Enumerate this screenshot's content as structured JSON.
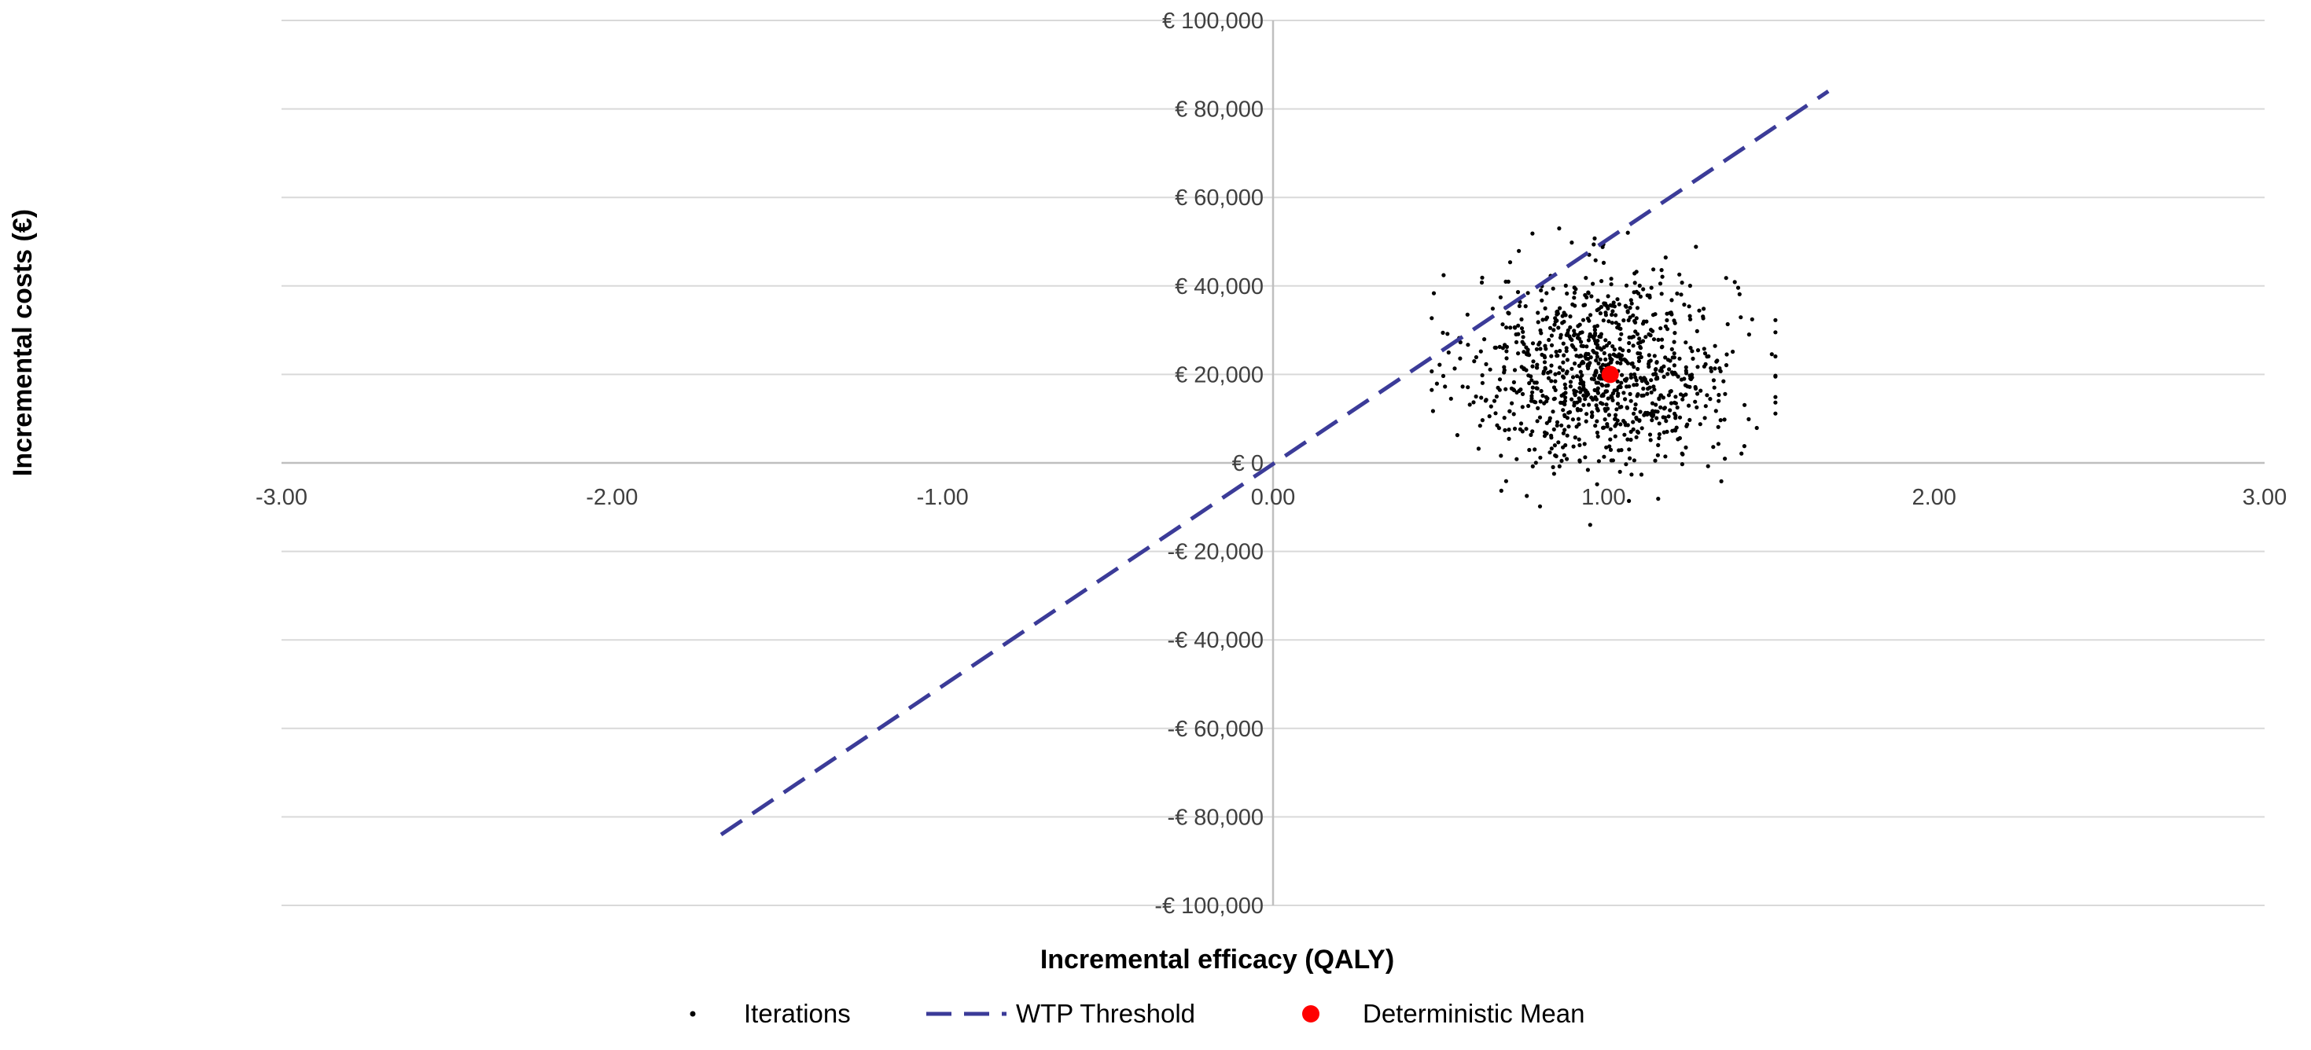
{
  "chart_data": {
    "type": "scatter",
    "title": "",
    "xlabel": "Incremental efficacy (QALY)",
    "ylabel": "Incremental costs (€)",
    "xlim": [
      -3,
      3
    ],
    "ylim": [
      -100000,
      100000
    ],
    "x_ticks": [
      -3,
      -2,
      -1,
      0,
      1,
      2,
      3
    ],
    "x_tick_labels": [
      "-3.00",
      "-2.00",
      "-1.00",
      "0.00",
      "1.00",
      "2.00",
      "3.00"
    ],
    "y_ticks": [
      100000,
      80000,
      60000,
      40000,
      20000,
      0,
      -20000,
      -40000,
      -60000,
      -80000,
      -100000
    ],
    "y_tick_labels": [
      "€ 100,000",
      "€ 80,000",
      "€ 60,000",
      "€ 40,000",
      "€ 20,000",
      "€ 0",
      "-€ 20,000",
      "-€ 40,000",
      "-€ 60,000",
      "-€ 80,000",
      "-€ 100,000"
    ],
    "grid": true,
    "legend_position": "bottom",
    "series": [
      {
        "name": "Iterations",
        "kind": "points",
        "color": "#000000",
        "description": "Probabilistic sensitivity analysis iterations",
        "count": 1000,
        "center": [
          1.0,
          21000
        ],
        "spread": [
          0.2,
          11000
        ],
        "x_range": [
          0.48,
          1.52
        ],
        "y_range": [
          -14000,
          53000
        ]
      },
      {
        "name": "WTP Threshold",
        "kind": "dashed-line",
        "color": "#3B3B98",
        "x": [
          -1.67,
          1.68
        ],
        "y": [
          -84000,
          84000
        ]
      },
      {
        "name": "Deterministic Mean",
        "kind": "marker",
        "color": "#FF0000",
        "x": [
          1.02
        ],
        "y": [
          20000
        ]
      }
    ]
  },
  "legend": {
    "iterations": "Iterations",
    "wtp": "WTP Threshold",
    "mean": "Deterministic Mean"
  }
}
